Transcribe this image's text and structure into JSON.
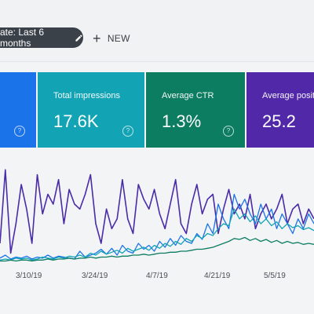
{
  "toolbar": {
    "date_filter_label": "ate: Last 6 months",
    "new_label": "NEW"
  },
  "cards": {
    "impressions": {
      "label": "Total impressions",
      "value": "17.6K",
      "color": "#12a4b5"
    },
    "ctr": {
      "label": "Average CTR",
      "value": "1.3%",
      "color": "#0d7d62"
    },
    "position": {
      "label": "Average position",
      "value": "25.2",
      "color": "#5129a8"
    },
    "clicks": {
      "color": "#1a73e8"
    },
    "help_glyph": "?"
  },
  "chart_data": {
    "type": "line",
    "x_tick_labels": [
      "3/10/19",
      "3/24/19",
      "4/7/19",
      "4/21/19",
      "5/5/19"
    ],
    "series": [
      {
        "color": "#4a2ba8",
        "values": [
          20,
          95,
          10,
          40,
          80,
          55,
          20,
          90,
          50,
          70,
          60,
          85,
          40,
          75,
          60,
          55,
          70,
          90,
          40,
          20,
          55,
          35,
          45,
          85,
          45,
          30,
          80,
          65,
          55,
          75,
          50,
          35,
          60,
          85,
          40,
          30,
          60,
          80,
          50,
          65,
          70,
          30,
          55,
          75,
          50,
          60,
          45,
          70,
          35,
          50,
          60,
          45,
          55,
          70,
          40,
          55,
          60,
          40,
          55,
          45
        ]
      },
      {
        "color": "#1a73e8",
        "values": [
          5,
          8,
          4,
          6,
          5,
          7,
          4,
          6,
          5,
          8,
          5,
          7,
          6,
          5,
          4,
          12,
          6,
          8,
          10,
          14,
          9,
          15,
          8,
          18,
          12,
          10,
          20,
          14,
          18,
          12,
          22,
          16,
          25,
          18,
          28,
          22,
          20,
          30,
          24,
          40,
          30,
          60,
          45,
          35,
          70,
          55,
          65,
          50,
          40,
          60,
          45,
          55,
          35,
          50,
          40,
          30,
          45,
          35,
          50,
          40
        ]
      },
      {
        "color": "#12a4b5",
        "values": [
          3,
          4,
          3,
          5,
          4,
          5,
          3,
          4,
          6,
          5,
          4,
          6,
          5,
          7,
          6,
          8,
          6,
          10,
          8,
          12,
          9,
          11,
          13,
          10,
          15,
          12,
          14,
          16,
          13,
          18,
          15,
          20,
          17,
          22,
          19,
          25,
          22,
          28,
          25,
          30,
          28,
          35,
          40,
          38,
          55,
          45,
          50,
          42,
          48,
          40,
          45,
          38,
          42,
          35,
          40,
          36,
          38,
          34,
          36,
          33
        ]
      },
      {
        "color": "#0d7d62",
        "values": [
          2,
          2,
          3,
          2,
          3,
          3,
          2,
          3,
          3,
          4,
          3,
          4,
          4,
          5,
          4,
          5,
          5,
          6,
          5,
          6,
          6,
          7,
          6,
          7,
          7,
          8,
          8,
          9,
          8,
          9,
          10,
          10,
          11,
          11,
          12,
          12,
          13,
          14,
          14,
          15,
          16,
          18,
          20,
          22,
          25,
          24,
          26,
          23,
          25,
          22,
          24,
          21,
          23,
          20,
          22,
          20,
          21,
          19,
          20,
          19
        ]
      }
    ],
    "ylim": [
      0,
      100
    ],
    "grid": false
  }
}
